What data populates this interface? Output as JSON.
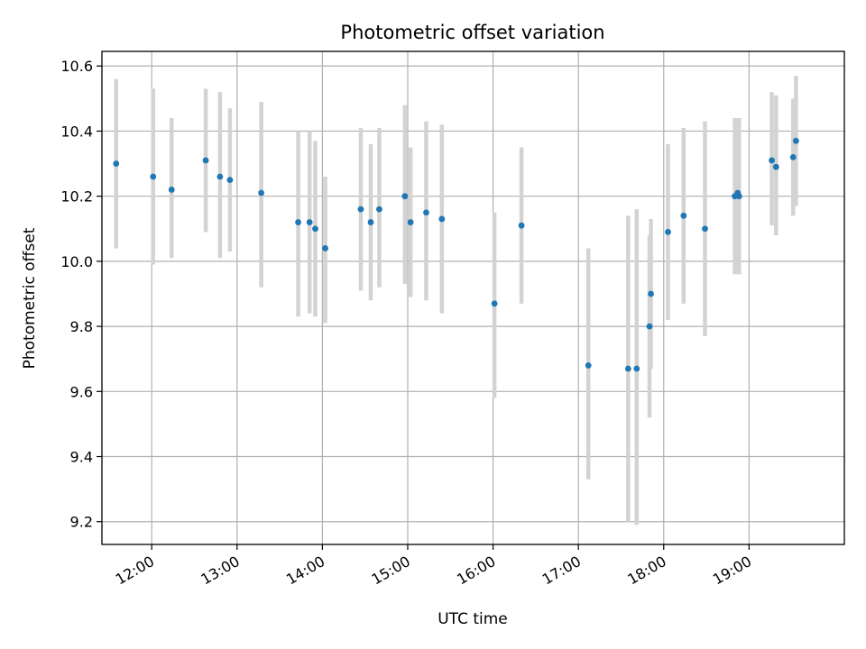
{
  "chart_data": {
    "type": "scatter",
    "title": "Photometric offset variation",
    "xlabel": "UTC time",
    "ylabel": "Photometric offset",
    "xlim": [
      "11:25",
      "20:07"
    ],
    "ylim": [
      9.13,
      10.645
    ],
    "x_ticks": [
      "12:00",
      "13:00",
      "14:00",
      "15:00",
      "16:00",
      "17:00",
      "18:00",
      "19:00"
    ],
    "y_ticks": [
      9.2,
      9.4,
      9.6,
      9.8,
      10.0,
      10.2,
      10.4,
      10.6
    ],
    "y_tick_labels": [
      "9.2",
      "9.4",
      "9.6",
      "9.8",
      "10.0",
      "10.2",
      "10.4",
      "10.6"
    ],
    "grid": true,
    "colors": {
      "point": "#1f77b4",
      "errorbar": "#d3d3d3"
    },
    "points": [
      {
        "x": "11:35",
        "y": 10.3,
        "y_lower": 10.04,
        "y_upper": 10.56
      },
      {
        "x": "12:01",
        "y": 10.26,
        "y_lower": 9.99,
        "y_upper": 10.53
      },
      {
        "x": "12:14",
        "y": 10.22,
        "y_lower": 10.01,
        "y_upper": 10.44
      },
      {
        "x": "12:38",
        "y": 10.31,
        "y_lower": 10.09,
        "y_upper": 10.53
      },
      {
        "x": "12:48",
        "y": 10.26,
        "y_lower": 10.01,
        "y_upper": 10.52
      },
      {
        "x": "12:55",
        "y": 10.25,
        "y_lower": 10.03,
        "y_upper": 10.47
      },
      {
        "x": "13:17",
        "y": 10.21,
        "y_lower": 9.92,
        "y_upper": 10.49
      },
      {
        "x": "13:43",
        "y": 10.12,
        "y_lower": 9.83,
        "y_upper": 10.4
      },
      {
        "x": "13:51",
        "y": 10.12,
        "y_lower": 9.84,
        "y_upper": 10.4
      },
      {
        "x": "13:55",
        "y": 10.1,
        "y_lower": 9.83,
        "y_upper": 10.37
      },
      {
        "x": "14:02",
        "y": 10.04,
        "y_lower": 9.81,
        "y_upper": 10.26
      },
      {
        "x": "14:27",
        "y": 10.16,
        "y_lower": 9.91,
        "y_upper": 10.41
      },
      {
        "x": "14:34",
        "y": 10.12,
        "y_lower": 9.88,
        "y_upper": 10.36
      },
      {
        "x": "14:40",
        "y": 10.16,
        "y_lower": 9.92,
        "y_upper": 10.41
      },
      {
        "x": "14:58",
        "y": 10.2,
        "y_lower": 9.93,
        "y_upper": 10.48
      },
      {
        "x": "15:02",
        "y": 10.12,
        "y_lower": 9.89,
        "y_upper": 10.35
      },
      {
        "x": "15:13",
        "y": 10.15,
        "y_lower": 9.88,
        "y_upper": 10.43
      },
      {
        "x": "15:24",
        "y": 10.13,
        "y_lower": 9.84,
        "y_upper": 10.42
      },
      {
        "x": "16:01",
        "y": 9.87,
        "y_lower": 9.58,
        "y_upper": 10.15
      },
      {
        "x": "16:20",
        "y": 10.11,
        "y_lower": 9.87,
        "y_upper": 10.35
      },
      {
        "x": "17:07",
        "y": 9.68,
        "y_lower": 9.33,
        "y_upper": 10.04
      },
      {
        "x": "17:35",
        "y": 9.67,
        "y_lower": 9.2,
        "y_upper": 10.14
      },
      {
        "x": "17:41",
        "y": 9.67,
        "y_lower": 9.19,
        "y_upper": 10.16
      },
      {
        "x": "17:50",
        "y": 9.8,
        "y_lower": 9.52,
        "y_upper": 10.08
      },
      {
        "x": "17:51",
        "y": 9.9,
        "y_lower": 9.67,
        "y_upper": 10.13
      },
      {
        "x": "18:03",
        "y": 10.09,
        "y_lower": 9.82,
        "y_upper": 10.36
      },
      {
        "x": "18:14",
        "y": 10.14,
        "y_lower": 9.87,
        "y_upper": 10.41
      },
      {
        "x": "18:29",
        "y": 10.1,
        "y_lower": 9.77,
        "y_upper": 10.43
      },
      {
        "x": "18:50",
        "y": 10.2,
        "y_lower": 9.96,
        "y_upper": 10.44
      },
      {
        "x": "18:52",
        "y": 10.21,
        "y_lower": 9.97,
        "y_upper": 10.44
      },
      {
        "x": "18:53",
        "y": 10.2,
        "y_lower": 9.96,
        "y_upper": 10.44
      },
      {
        "x": "19:16",
        "y": 10.31,
        "y_lower": 10.11,
        "y_upper": 10.52
      },
      {
        "x": "19:19",
        "y": 10.29,
        "y_lower": 10.08,
        "y_upper": 10.51
      },
      {
        "x": "19:31",
        "y": 10.32,
        "y_lower": 10.14,
        "y_upper": 10.5
      },
      {
        "x": "19:33",
        "y": 10.37,
        "y_lower": 10.17,
        "y_upper": 10.57
      }
    ]
  }
}
